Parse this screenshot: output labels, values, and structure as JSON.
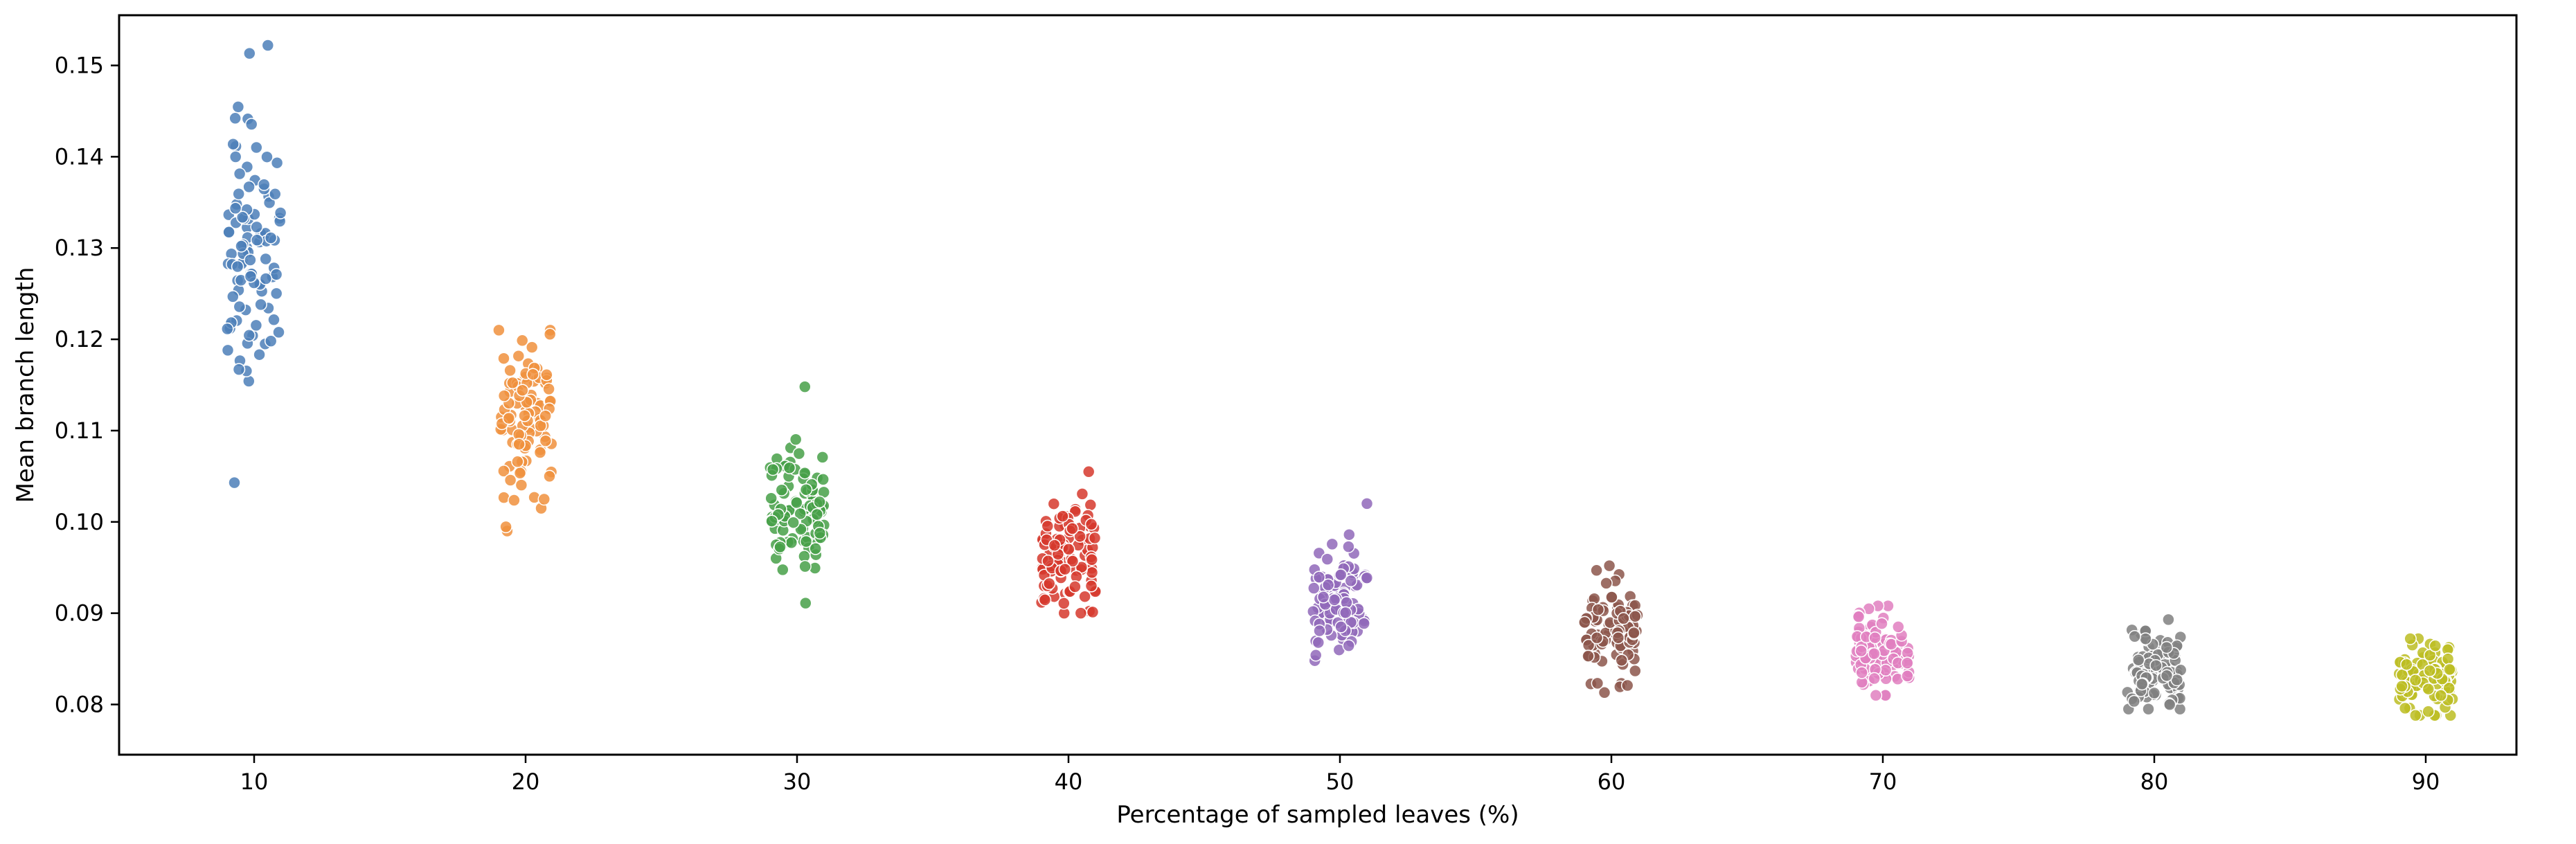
{
  "chart_data": {
    "type": "scatter",
    "style": "strip plot (jittered)",
    "xlabel": "Percentage of sampled leaves (%)",
    "ylabel": "Mean branch length",
    "title": "",
    "ylim": [
      0.0745,
      0.1555
    ],
    "grid": false,
    "legend": "none",
    "x_ticks": [
      "10",
      "20",
      "30",
      "40",
      "50",
      "60",
      "70",
      "80",
      "90"
    ],
    "y_ticks": [
      "0.08",
      "0.09",
      "0.10",
      "0.11",
      "0.12",
      "0.13",
      "0.14",
      "0.15"
    ],
    "series": [
      {
        "name": "10",
        "color": "#4c7fb8",
        "center": 0.129,
        "spread": 0.0075,
        "min": 0.1043,
        "max": 0.1522,
        "n": 100
      },
      {
        "name": "20",
        "color": "#f0903d",
        "center": 0.111,
        "spread": 0.0045,
        "min": 0.099,
        "max": 0.121,
        "n": 100
      },
      {
        "name": "30",
        "color": "#46a048",
        "center": 0.102,
        "spread": 0.0035,
        "min": 0.0911,
        "max": 0.1148,
        "n": 100
      },
      {
        "name": "40",
        "color": "#d6382d",
        "center": 0.096,
        "spread": 0.003,
        "min": 0.09,
        "max": 0.1055,
        "n": 100
      },
      {
        "name": "50",
        "color": "#9169ba",
        "center": 0.091,
        "spread": 0.0028,
        "min": 0.0848,
        "max": 0.102,
        "n": 100
      },
      {
        "name": "60",
        "color": "#8c564b",
        "center": 0.088,
        "spread": 0.0023,
        "min": 0.0813,
        "max": 0.0952,
        "n": 100
      },
      {
        "name": "70",
        "color": "#e07fc0",
        "center": 0.0855,
        "spread": 0.0022,
        "min": 0.081,
        "max": 0.0908,
        "n": 100
      },
      {
        "name": "80",
        "color": "#808080",
        "center": 0.084,
        "spread": 0.0022,
        "min": 0.0795,
        "max": 0.0893,
        "n": 100
      },
      {
        "name": "90",
        "color": "#bcbd22",
        "center": 0.0825,
        "spread": 0.0019,
        "min": 0.0788,
        "max": 0.0872,
        "n": 100
      }
    ]
  }
}
